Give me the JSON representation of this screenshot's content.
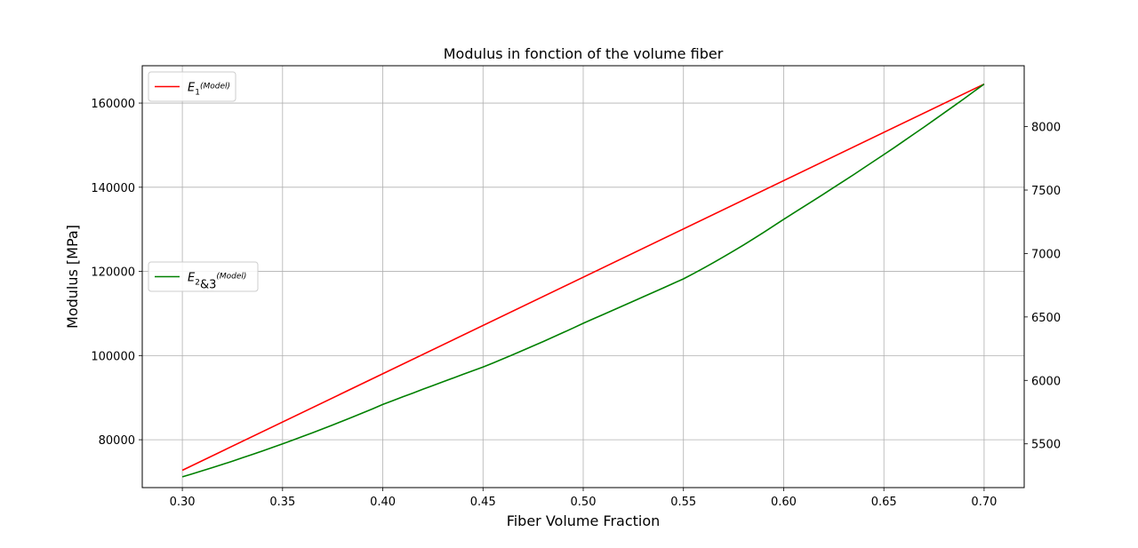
{
  "chart_data": {
    "type": "line",
    "title": "Modulus in fonction of the volume fiber",
    "xlabel": "Fiber Volume Fraction",
    "ylabel": "Modulus [MPa]",
    "xlim": [
      0.28,
      0.72
    ],
    "ylim_left": [
      68625,
      168875
    ],
    "ylim_right": [
      5155,
      8480
    ],
    "x_ticks": [
      0.3,
      0.35,
      0.4,
      0.45,
      0.5,
      0.55,
      0.6,
      0.65,
      0.7
    ],
    "x_tick_labels": [
      "0.30",
      "0.35",
      "0.40",
      "0.45",
      "0.50",
      "0.55",
      "0.60",
      "0.65",
      "0.70"
    ],
    "y_left_ticks": [
      80000,
      100000,
      120000,
      140000,
      160000
    ],
    "y_left_tick_labels": [
      "80000",
      "100000",
      "120000",
      "140000",
      "160000"
    ],
    "y_right_ticks": [
      5500,
      6000,
      6500,
      7000,
      7500,
      8000
    ],
    "y_right_tick_labels": [
      "5500",
      "6000",
      "6500",
      "7000",
      "7500",
      "8000"
    ],
    "grid": true,
    "series": [
      {
        "name": "E1(Model)",
        "axis": "left",
        "color": "#ff0000",
        "legend_loc": "upper left",
        "legend_main": "E",
        "legend_sub": "1",
        "legend_tail": "",
        "legend_sup": "(Model)",
        "x": [
          0.3,
          0.7
        ],
        "values": [
          72750,
          164500
        ]
      },
      {
        "name": "E2&3(Model)",
        "axis": "right",
        "color": "#008000",
        "legend_loc": "center left",
        "legend_main": "E",
        "legend_sub": "2",
        "legend_tail": "&3",
        "legend_sup": "(Model)",
        "x": [
          0.3,
          0.35,
          0.4,
          0.45,
          0.5,
          0.55,
          0.6,
          0.65,
          0.7
        ],
        "values": [
          5240,
          5500,
          5810,
          6105,
          6450,
          6800,
          7270,
          7780,
          8335
        ]
      }
    ]
  }
}
